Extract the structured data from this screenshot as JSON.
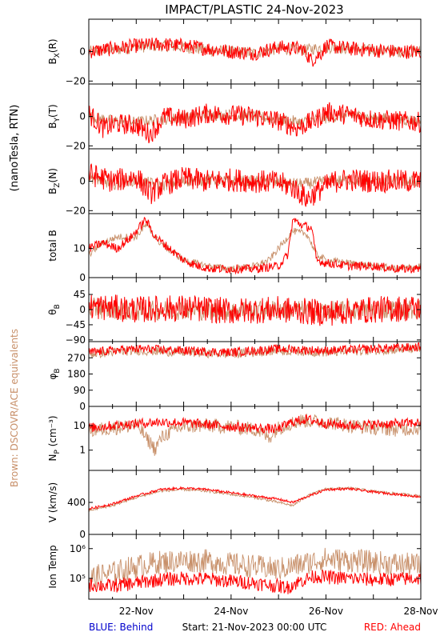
{
  "chart_data": {
    "type": "line",
    "title": "IMPACT/PLASTIC   24-Nov-2023",
    "side_label_units": "(nanoTesla, RTN)",
    "side_label_brown": "Brown: DSCOVR/ACE equivalents",
    "footer": {
      "left": "BLUE: Behind",
      "center": "Start: 21-Nov-2023 00:00 UTC",
      "right": "RED: Ahead"
    },
    "x_range_days": [
      0,
      7
    ],
    "x_ticks": [
      {
        "day": 1,
        "label": "22-Nov"
      },
      {
        "day": 3,
        "label": "24-Nov"
      },
      {
        "day": 5,
        "label": "26-Nov"
      },
      {
        "day": 7,
        "label": "28-Nov"
      }
    ],
    "colors": {
      "ahead": "#ff0000",
      "brown": "#c8906a",
      "behind": "#0000cc",
      "axis": "#000000"
    },
    "panels": [
      {
        "id": "bx",
        "ylabel": "Bx(R)",
        "ylabel_main": "B",
        "ylabel_sub": "X",
        "ylabel_tail": "(R)",
        "ylim": [
          -22,
          22
        ],
        "yticks": [
          {
            "v": 0,
            "l": "0"
          },
          {
            "v": -20,
            "l": "−20"
          }
        ],
        "scale": "linear",
        "series": {
          "ahead": {
            "t": [
              0,
              0.5,
              1,
              1.5,
              2,
              2.5,
              3,
              3.5,
              4,
              4.5,
              4.7,
              4.9,
              5,
              5.5,
              6,
              6.5,
              7
            ],
            "v": [
              0,
              2,
              4,
              5,
              4,
              2,
              0,
              -1,
              3,
              2,
              -6,
              -1,
              4,
              2,
              1,
              0,
              0
            ],
            "noise": 5
          },
          "brown": {
            "t": [
              0,
              0.5,
              1,
              1.5,
              2,
              2.5,
              3,
              3.5,
              4,
              4.5,
              5,
              5.5,
              6,
              6.5,
              7
            ],
            "v": [
              0,
              1,
              3,
              4,
              3,
              1,
              0,
              -1,
              2,
              1,
              3,
              2,
              1,
              0,
              0
            ],
            "noise": 4
          }
        }
      },
      {
        "id": "by",
        "ylabel": "By(T)",
        "ylabel_main": "B",
        "ylabel_sub": "Y",
        "ylabel_tail": "(T)",
        "ylim": [
          -22,
          22
        ],
        "yticks": [
          {
            "v": 0,
            "l": "0"
          },
          {
            "v": -20,
            "l": "−20"
          }
        ],
        "scale": "linear",
        "series": {
          "ahead": {
            "t": [
              0,
              0.3,
              0.6,
              1,
              1.3,
              1.6,
              2,
              2.5,
              3,
              3.5,
              4,
              4.4,
              4.8,
              5,
              5.5,
              6,
              6.5,
              7
            ],
            "v": [
              2,
              -8,
              -5,
              -6,
              -12,
              0,
              -2,
              2,
              1,
              0,
              -3,
              -8,
              -2,
              3,
              1,
              -2,
              -3,
              -4
            ],
            "noise": 7
          },
          "brown": {
            "t": [
              0,
              0.5,
              1,
              1.5,
              2,
              2.5,
              3,
              3.5,
              4,
              4.5,
              5,
              5.5,
              6,
              6.5,
              7
            ],
            "v": [
              0,
              -3,
              -4,
              -2,
              -1,
              1,
              1,
              0,
              -2,
              -4,
              -1,
              1,
              -1,
              -2,
              -3
            ],
            "noise": 4
          }
        }
      },
      {
        "id": "bz",
        "ylabel": "Bz(N)",
        "ylabel_main": "B",
        "ylabel_sub": "Z",
        "ylabel_tail": "(N)",
        "ylim": [
          -22,
          22
        ],
        "yticks": [
          {
            "v": 0,
            "l": "0"
          },
          {
            "v": -20,
            "l": "−20"
          }
        ],
        "scale": "linear",
        "series": {
          "ahead": {
            "t": [
              0,
              0.5,
              1,
              1.3,
              1.6,
              2,
              2.5,
              3,
              3.5,
              4,
              4.3,
              4.6,
              4.9,
              5.2,
              5.5,
              6,
              6.5,
              7
            ],
            "v": [
              5,
              0,
              3,
              -8,
              -2,
              2,
              0,
              1,
              0,
              -1,
              -4,
              -12,
              -5,
              0,
              1,
              0,
              0,
              0
            ],
            "noise": 8
          },
          "brown": {
            "t": [
              0,
              0.5,
              1,
              1.5,
              2,
              2.5,
              3,
              3.5,
              4,
              4.5,
              5,
              5.5,
              6,
              6.5,
              7
            ],
            "v": [
              3,
              -2,
              1,
              -3,
              0,
              1,
              0,
              0,
              -1,
              -2,
              0,
              1,
              0,
              0,
              0
            ],
            "noise": 4
          }
        }
      },
      {
        "id": "btot",
        "ylabel": "total B",
        "ylabel_main": "total B",
        "ylabel_sub": "",
        "ylabel_tail": "",
        "ylim": [
          0,
          22
        ],
        "yticks": [
          {
            "v": 0,
            "l": "0"
          },
          {
            "v": 10,
            "l": "10"
          }
        ],
        "scale": "linear",
        "series": {
          "ahead": {
            "t": [
              0,
              0.3,
              0.6,
              0.9,
              1.1,
              1.2,
              1.4,
              1.7,
              2,
              2.3,
              2.6,
              3,
              3.5,
              4,
              4.2,
              4.3,
              4.5,
              4.7,
              4.8,
              5,
              5.5,
              6,
              6.5,
              7
            ],
            "v": [
              10,
              12,
              10,
              14,
              18,
              20,
              14,
              10,
              6,
              4,
              3,
              3,
              3,
              4,
              8,
              20,
              18,
              17,
              6,
              5,
              4,
              4,
              3,
              3
            ],
            "noise": 1.5
          },
          "brown": {
            "t": [
              0,
              0.3,
              0.6,
              1,
              1.2,
              1.5,
              2,
              2.5,
              3,
              3.5,
              3.8,
              4,
              4.3,
              4.6,
              4.8,
              5,
              5.5,
              6,
              6.5,
              7
            ],
            "v": [
              8,
              12,
              14,
              14,
              18,
              12,
              6,
              4,
              3,
              4,
              6,
              10,
              16,
              15,
              8,
              6,
              5,
              4,
              3,
              4
            ],
            "noise": 1.2
          }
        }
      },
      {
        "id": "theta",
        "ylabel": "θB",
        "ylabel_main": "θ",
        "ylabel_sub": "B",
        "ylabel_tail": "",
        "ylim": [
          -95,
          95
        ],
        "yticks": [
          {
            "v": 45,
            "l": "45"
          },
          {
            "v": 0,
            "l": "0"
          },
          {
            "v": -45,
            "l": "−45"
          },
          {
            "v": -90,
            "l": "−90"
          }
        ],
        "scale": "linear",
        "series": {
          "ahead": {
            "t": [
              0,
              1,
              2,
              3,
              4,
              5,
              6,
              7
            ],
            "v": [
              10,
              0,
              5,
              -5,
              0,
              -10,
              0,
              5
            ],
            "noise": 40
          },
          "brown": {
            "t": [
              0,
              1,
              2,
              3,
              4,
              5,
              6,
              7
            ],
            "v": [
              5,
              -5,
              0,
              -5,
              0,
              -5,
              0,
              0
            ],
            "noise": 30
          }
        }
      },
      {
        "id": "phi",
        "ylabel": "φB",
        "ylabel_main": "φ",
        "ylabel_sub": "B",
        "ylabel_tail": "",
        "ylim": [
          0,
          360
        ],
        "yticks": [
          {
            "v": 270,
            "l": "270"
          },
          {
            "v": 180,
            "l": "180"
          },
          {
            "v": 90,
            "l": "90"
          },
          {
            "v": 0,
            "l": "0"
          }
        ],
        "scale": "linear",
        "series": {
          "ahead": {
            "t": [
              0,
              1,
              2,
              3,
              4,
              5,
              6,
              7
            ],
            "v": [
              300,
              320,
              310,
              300,
              320,
              310,
              320,
              330
            ],
            "noise": 25
          },
          "brown": {
            "t": [
              0,
              1,
              2,
              3,
              4,
              5,
              6,
              7
            ],
            "v": [
              290,
              310,
              300,
              290,
              310,
              300,
              310,
              320
            ],
            "noise": 25
          }
        }
      },
      {
        "id": "np",
        "ylabel": "NP (cm−3)",
        "ylabel_main": "N",
        "ylabel_sub": "P",
        "ylabel_tail": " (cm⁻³)",
        "ylim": [
          0.15,
          60
        ],
        "yticks": [
          {
            "v": 10,
            "l": "10"
          },
          {
            "v": 1,
            "l": "1"
          }
        ],
        "scale": "log",
        "series": {
          "ahead": {
            "t": [
              0,
              0.5,
              1,
              1.5,
              2,
              2.5,
              3,
              3.5,
              4,
              4.3,
              4.6,
              5,
              5.5,
              6,
              6.5,
              7
            ],
            "v": [
              8,
              10,
              12,
              14,
              13,
              11,
              9,
              8,
              7,
              14,
              18,
              12,
              10,
              11,
              12,
              13
            ],
            "noise": 0.1
          },
          "brown": {
            "t": [
              0,
              0.5,
              1,
              1.2,
              1.4,
              1.6,
              2,
              2.5,
              3,
              3.5,
              3.8,
              4,
              4.5,
              5,
              5.5,
              6,
              6.5,
              7
            ],
            "v": [
              6,
              8,
              10,
              3,
              1,
              4,
              9,
              10,
              9,
              7,
              3,
              8,
              16,
              14,
              10,
              8,
              7,
              8
            ],
            "noise": 0.15
          }
        }
      },
      {
        "id": "v",
        "ylabel": "V (km/s)",
        "ylabel_main": "V (km/s)",
        "ylabel_sub": "",
        "ylabel_tail": "",
        "ylim": [
          0,
          800
        ],
        "yticks": [
          {
            "v": 400,
            "l": "400"
          },
          {
            "v": 0,
            "l": "0"
          }
        ],
        "scale": "linear",
        "series": {
          "ahead": {
            "t": [
              0,
              0.5,
              1,
              1.5,
              2,
              2.5,
              3,
              3.5,
              4,
              4.3,
              4.6,
              5,
              5.5,
              6,
              6.5,
              7
            ],
            "v": [
              320,
              380,
              480,
              560,
              580,
              560,
              520,
              480,
              440,
              400,
              470,
              560,
              570,
              530,
              500,
              470
            ],
            "noise": 15
          },
          "brown": {
            "t": [
              0,
              0.5,
              1,
              1.5,
              2,
              2.5,
              3,
              3.5,
              4,
              4.3,
              4.6,
              5,
              5.5,
              6,
              6.5,
              7
            ],
            "v": [
              300,
              360,
              460,
              540,
              560,
              540,
              500,
              460,
              400,
              360,
              480,
              570,
              580,
              540,
              510,
              480
            ],
            "noise": 15
          }
        }
      },
      {
        "id": "temp",
        "ylabel": "Ion Temp",
        "ylabel_main": "Ion Temp",
        "ylabel_sub": "",
        "ylabel_tail": "",
        "ylim": [
          20000,
          3000000
        ],
        "yticks": [
          {
            "v": 1000000,
            "l": "10⁶"
          },
          {
            "v": 100000,
            "l": "10⁵"
          }
        ],
        "scale": "log",
        "series": {
          "ahead": {
            "t": [
              0,
              0.5,
              1,
              1.5,
              2,
              2.5,
              3,
              3.5,
              3.8,
              4.2,
              4.8,
              5,
              5.5,
              6,
              6.5,
              7
            ],
            "v": [
              60000,
              55000,
              70000,
              90000,
              100000,
              95000,
              80000,
              70000,
              60000,
              50000,
              120000,
              110000,
              100000,
              90000,
              95000,
              100000
            ],
            "noise": 0.12
          },
          "brown": {
            "t": [
              0,
              0.5,
              1,
              1.5,
              2,
              2.5,
              3,
              3.5,
              4,
              4.5,
              5,
              5.5,
              6,
              6.5,
              7
            ],
            "v": [
              100000,
              150000,
              250000,
              350000,
              400000,
              380000,
              300000,
              250000,
              200000,
              300000,
              450000,
              400000,
              350000,
              300000,
              280000
            ],
            "noise": 0.2
          }
        }
      }
    ]
  }
}
